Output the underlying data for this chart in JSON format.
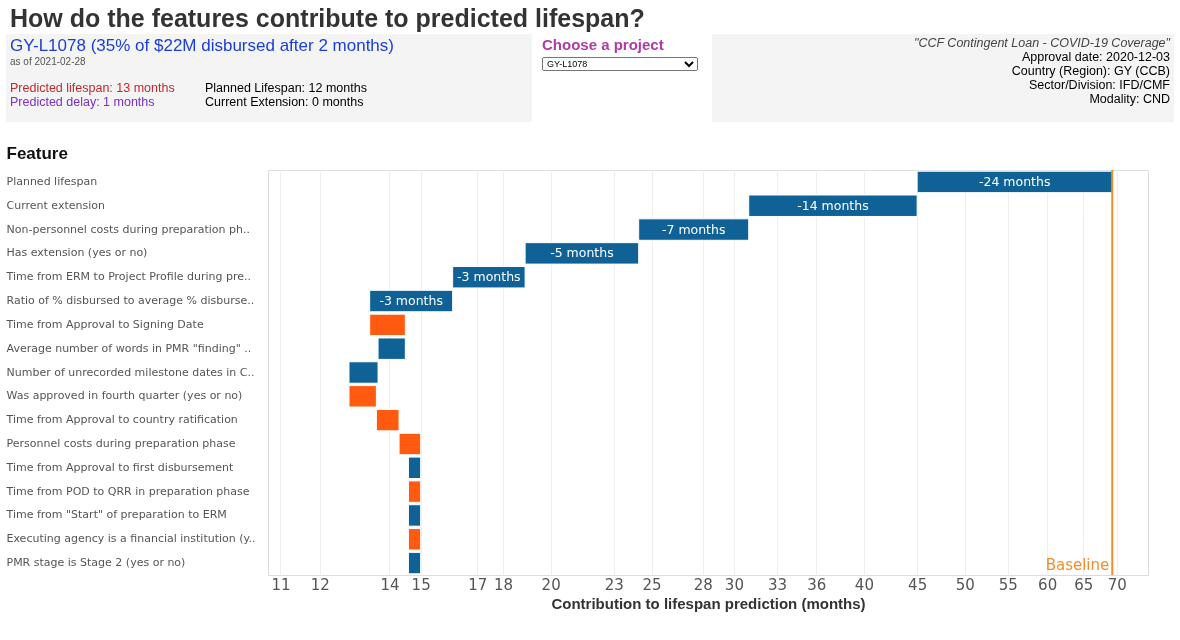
{
  "chart_data": {
    "type": "bar",
    "orientation": "horizontal",
    "title": "How do the features contribute to predicted lifespan?",
    "xlabel": "Contribution to lifespan prediction (months)",
    "ylabel": "Feature",
    "categories": [
      "Planned lifespan",
      "Current extension",
      "Non-personnel costs during preparation ph..",
      "Has extension (yes or no)",
      "Time from ERM to Project Profile during pre..",
      "Ratio of % disbursed to average % disburse..",
      "Time from Approval to Signing Date",
      "Average number of words in PMR \"finding\" ..",
      "Number of unrecorded milestone dates in C..",
      "Was approved in fourth quarter (yes or no)",
      "Time from Approval to country ratification",
      "Personnel costs during preparation phase",
      "Time from Approval to first disbursement",
      "Time from POD to QRR in preparation phase",
      "Time from \"Start\" of preparation to ERM",
      "Executing agency is a financial institution (y..",
      "PMR stage is Stage 2 (yes or no)"
    ],
    "base": [
      69.3,
      45.0,
      31.0,
      24.3,
      18.9,
      16.1,
      13.4,
      14.5,
      13.65,
      12.8,
      13.6,
      14.3,
      15.0,
      14.6,
      15.0,
      14.6,
      15.0
    ],
    "values": [
      -24.3,
      -14.0,
      -6.7,
      -5.4,
      -2.8,
      -2.7,
      1.1,
      -0.85,
      -0.85,
      0.8,
      0.7,
      0.7,
      -0.4,
      0.4,
      -0.4,
      0.4,
      -0.4
    ],
    "value_labels": [
      "-24 months",
      "-14 months",
      "-7 months",
      "-5 months",
      "-3 months",
      "-3 months",
      null,
      null,
      null,
      null,
      null,
      null,
      null,
      null,
      null,
      null,
      null
    ],
    "colors": [
      "#0f6196",
      "#0f6196",
      "#0f6196",
      "#0f6196",
      "#0f6196",
      "#0f6196",
      "#ff5a0f",
      "#0f6196",
      "#0f6196",
      "#ff5a0f",
      "#ff5a0f",
      "#ff5a0f",
      "#0f6196",
      "#ff5a0f",
      "#0f6196",
      "#ff5a0f",
      "#0f6196"
    ],
    "log": "x",
    "xlim": [
      10.7,
      75
    ],
    "xticks": [
      11,
      12,
      14,
      15,
      17,
      18,
      20,
      23,
      25,
      28,
      30,
      33,
      36,
      40,
      45,
      50,
      55,
      60,
      65,
      70
    ],
    "grid": "x",
    "ref_lines": [
      {
        "axis": "x",
        "value": 69.3,
        "label": "Baseline",
        "color": "#f28e2b"
      }
    ],
    "annotations": [
      "GY-L1078 (35% of $22M disbursed after 2 months)",
      "as of 2021-02-28",
      "Predicted lifespan: 13 months",
      "Predicted delay: 1 months",
      "Planned Lifespan: 12 months",
      "Current Extension: 0 months",
      "Choose a project",
      "GY-L1078",
      "\"CCF Contingent Loan - COVID-19 Coverage\"",
      "Approval date: 2020-12-03",
      "Country (Region): GY (CCB)",
      "Sector/Division: IFD/CMF",
      "Modality: CND"
    ]
  }
}
